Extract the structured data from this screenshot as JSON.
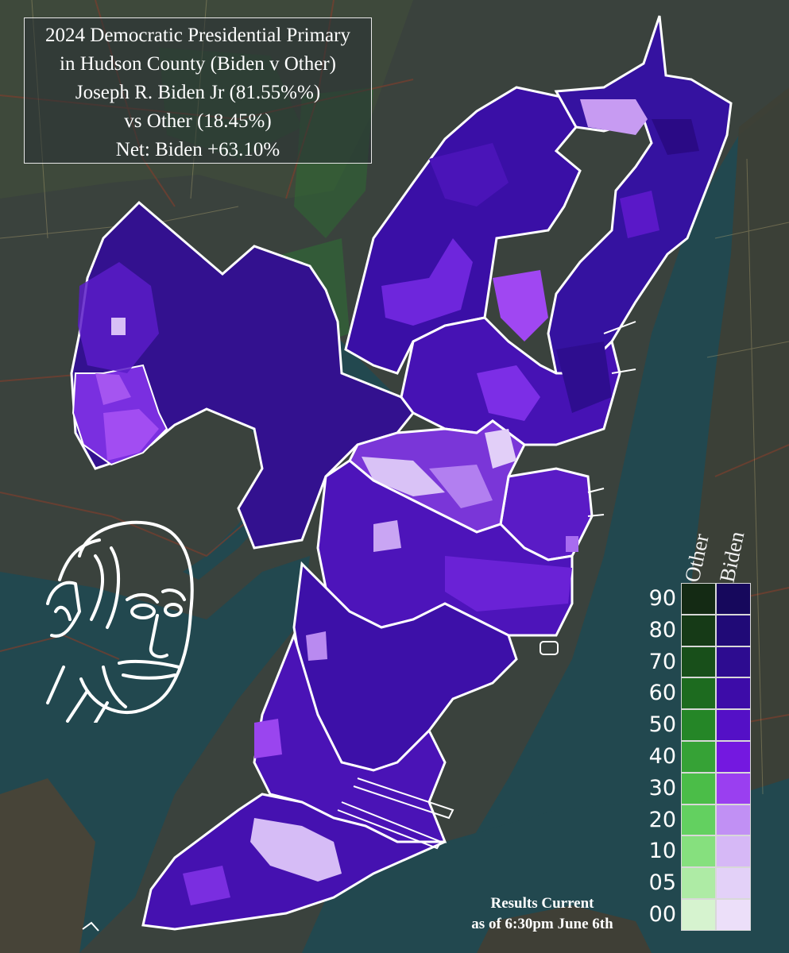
{
  "title": {
    "line1": "2024 Democratic Presidential Primary",
    "line2": "in Hudson County (Biden v Other)",
    "line3": "Joseph R. Biden Jr (81.55%%)",
    "line4": "vs Other (18.45%)",
    "line5": "Net: Biden +63.10%"
  },
  "legend": {
    "header_other": "Other",
    "header_biden": "Biden",
    "rows": [
      {
        "label": "90",
        "other": "#142a14",
        "biden": "#16085c"
      },
      {
        "label": "80",
        "other": "#163a17",
        "biden": "#200a77"
      },
      {
        "label": "70",
        "other": "#184f1a",
        "biden": "#2d0c90"
      },
      {
        "label": "60",
        "other": "#1d6b1f",
        "biden": "#3d0ca8"
      },
      {
        "label": "50",
        "other": "#258627",
        "biden": "#5410c6"
      },
      {
        "label": "40",
        "other": "#36a236",
        "biden": "#7418e0"
      },
      {
        "label": "30",
        "other": "#4bbd48",
        "biden": "#9a3ff0"
      },
      {
        "label": "20",
        "other": "#63d060",
        "biden": "#c190f4"
      },
      {
        "label": "10",
        "other": "#86e07e",
        "biden": "#d6b8f6"
      },
      {
        "label": "05",
        "other": "#aeeba5",
        "biden": "#e3d1f8"
      },
      {
        "label": "00",
        "other": "#d6f3cf",
        "biden": "#ecdff9"
      }
    ]
  },
  "footnote": {
    "line1": "Results Current",
    "line2": "as of 6:30pm June 6th"
  },
  "colors": {
    "water": "#22484f",
    "land": "#39423e",
    "county_border": "#ffffff",
    "base_fill": "#3e0ca6"
  },
  "icons": {
    "portrait": "biden-sketch-portrait"
  }
}
